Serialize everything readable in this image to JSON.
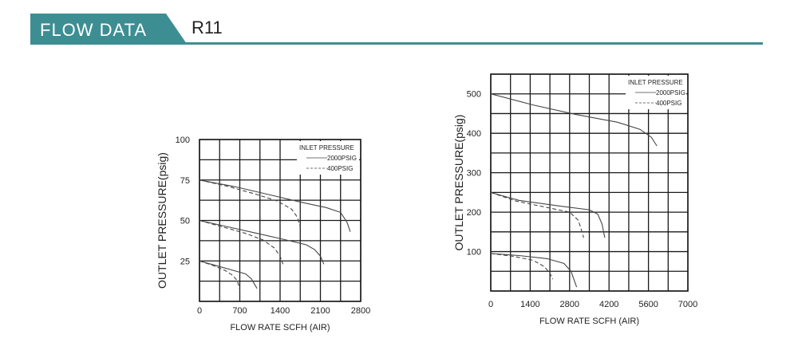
{
  "header": {
    "section_title": "FLOW DATA",
    "model": "R11",
    "accent_color": "#3d8e93"
  },
  "chart_data": [
    {
      "type": "line",
      "ylabel": "OUTLET PRESSURE(psig)",
      "xlabel": "FLOW RATE SCFH (AIR)",
      "xlim": [
        0,
        2800
      ],
      "ylim": [
        0,
        100
      ],
      "x_ticks": [
        "0",
        "700",
        "1400",
        "2100",
        "2800"
      ],
      "y_ticks": [
        "25",
        "50",
        "75",
        "100"
      ],
      "x_tick_values": [
        0,
        700,
        1400,
        2100,
        2800
      ],
      "y_tick_values": [
        25,
        50,
        75,
        100
      ],
      "grid_x_step": 350,
      "grid_y_step": 12.5,
      "grid": true,
      "legend_title": "INLET PRESSURE",
      "legend": [
        {
          "label": "2000PSIG",
          "style": "solid"
        },
        {
          "label": "400PSIG",
          "style": "dashed"
        }
      ],
      "legend_position": "top-right",
      "series": [
        {
          "style": "solid",
          "points": [
            [
              0,
              75
            ],
            [
              600,
              71
            ],
            [
              1200,
              66
            ],
            [
              1800,
              61
            ],
            [
              2200,
              58
            ],
            [
              2450,
              55
            ],
            [
              2560,
              49
            ],
            [
              2620,
              43
            ]
          ]
        },
        {
          "style": "dashed",
          "points": [
            [
              0,
              75
            ],
            [
              500,
              71
            ],
            [
              1000,
              66
            ],
            [
              1350,
              62
            ],
            [
              1600,
              57
            ],
            [
              1700,
              52
            ],
            [
              1750,
              46
            ]
          ]
        },
        {
          "style": "solid",
          "points": [
            [
              0,
              50
            ],
            [
              500,
              46
            ],
            [
              1000,
              42
            ],
            [
              1500,
              38
            ],
            [
              1850,
              35
            ],
            [
              2000,
              32
            ],
            [
              2100,
              28
            ],
            [
              2160,
              23
            ]
          ]
        },
        {
          "style": "dashed",
          "points": [
            [
              0,
              50
            ],
            [
              400,
              46
            ],
            [
              800,
              42
            ],
            [
              1100,
              38
            ],
            [
              1300,
              33
            ],
            [
              1400,
              28
            ],
            [
              1450,
              23
            ]
          ]
        },
        {
          "style": "solid",
          "points": [
            [
              0,
              25
            ],
            [
              300,
              22
            ],
            [
              600,
              19
            ],
            [
              800,
              17
            ],
            [
              900,
              14
            ],
            [
              950,
              11
            ],
            [
              1000,
              8
            ]
          ]
        },
        {
          "style": "dashed",
          "points": [
            [
              0,
              25
            ],
            [
              250,
              22
            ],
            [
              450,
              19
            ],
            [
              580,
              16
            ],
            [
              650,
              13
            ],
            [
              680,
              10
            ],
            [
              700,
              7
            ]
          ]
        }
      ]
    },
    {
      "type": "line",
      "ylabel": "OUTLET PRESSURE(psig)",
      "xlabel": "FLOW RATE SCFH (AIR)",
      "xlim": [
        0,
        7000
      ],
      "ylim": [
        0,
        550
      ],
      "x_ticks": [
        "0",
        "1400",
        "2800",
        "4200",
        "5600",
        "7000"
      ],
      "y_ticks": [
        "100",
        "200",
        "300",
        "400",
        "500"
      ],
      "x_tick_values": [
        0,
        1400,
        2800,
        4200,
        5600,
        7000
      ],
      "y_tick_values": [
        100,
        200,
        300,
        400,
        500
      ],
      "grid_x_step": 700,
      "grid_y_step": 50,
      "grid": true,
      "legend_title": "INLET PRESSURE",
      "legend": [
        {
          "label": "2000PSIG",
          "style": "solid"
        },
        {
          "label": "400PSIG",
          "style": "dashed"
        }
      ],
      "legend_position": "top-right",
      "series": [
        {
          "style": "solid",
          "points": [
            [
              0,
              500
            ],
            [
              1500,
              472
            ],
            [
              3000,
              448
            ],
            [
              4500,
              428
            ],
            [
              5300,
              410
            ],
            [
              5700,
              390
            ],
            [
              5900,
              368
            ]
          ]
        },
        {
          "style": "solid",
          "points": [
            [
              0,
              250
            ],
            [
              1000,
              230
            ],
            [
              2500,
              215
            ],
            [
              3500,
              206
            ],
            [
              3800,
              195
            ],
            [
              3950,
              170
            ],
            [
              4050,
              135
            ]
          ]
        },
        {
          "style": "dashed",
          "points": [
            [
              0,
              250
            ],
            [
              900,
              228
            ],
            [
              2000,
              212
            ],
            [
              2800,
              200
            ],
            [
              3100,
              180
            ],
            [
              3200,
              160
            ],
            [
              3300,
              135
            ]
          ]
        },
        {
          "style": "solid",
          "points": [
            [
              0,
              95
            ],
            [
              1000,
              90
            ],
            [
              2000,
              82
            ],
            [
              2600,
              70
            ],
            [
              2850,
              50
            ],
            [
              2950,
              30
            ],
            [
              3050,
              10
            ]
          ]
        },
        {
          "style": "dashed",
          "points": [
            [
              0,
              95
            ],
            [
              800,
              88
            ],
            [
              1500,
              78
            ],
            [
              1900,
              62
            ],
            [
              2100,
              45
            ],
            [
              2200,
              30
            ]
          ]
        }
      ]
    }
  ]
}
